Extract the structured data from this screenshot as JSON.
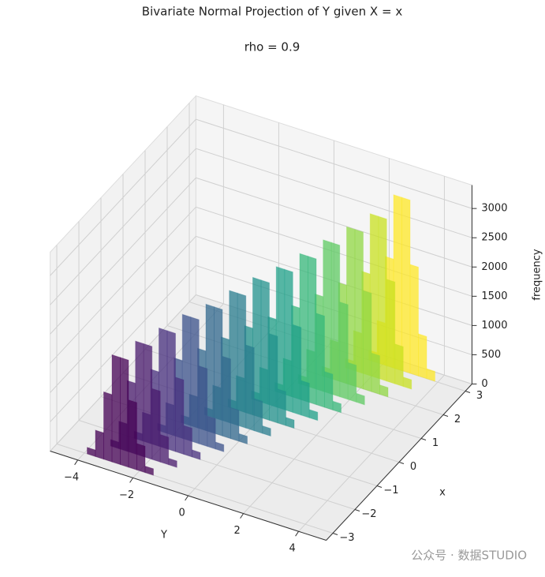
{
  "chart_data": {
    "type": "bar3d",
    "title": "Bivariate Normal Projection of Y given X = x",
    "subtitle": "rho = 0.9",
    "xlabel": "Y",
    "ylabel": "x",
    "zlabel": "frequency",
    "watermark": "公众号 · 数据STUDIO",
    "xlim": [
      -5,
      5
    ],
    "xticks": [
      {
        "value": -4,
        "label": "−4"
      },
      {
        "value": -2,
        "label": "−2"
      },
      0,
      2,
      4
    ],
    "ylim": [
      -3.3,
      3.3
    ],
    "yticks": [
      {
        "value": -3,
        "label": "−3"
      },
      {
        "value": -2,
        "label": "−2"
      },
      {
        "value": -1,
        "label": "−1"
      },
      0,
      1,
      2,
      3
    ],
    "zlim": [
      0,
      3400
    ],
    "zticks": [
      0,
      500,
      1000,
      1500,
      2000,
      2500,
      3000
    ],
    "grid": true,
    "series": [
      {
        "x": -3,
        "color": "#440154",
        "bins": [
          -3.9,
          -3.6,
          -3.3,
          -3.0,
          -2.7,
          -2.4,
          -2.1,
          -1.8,
          -1.5
        ],
        "values": [
          110,
          450,
          1150,
          1830,
          1830,
          1150,
          450,
          110
        ]
      },
      {
        "x": -2.5,
        "color": "#481a6c",
        "bins": [
          -3.45,
          -3.15,
          -2.85,
          -2.55,
          -2.25,
          -1.95,
          -1.65,
          -1.35,
          -1.05
        ],
        "values": [
          110,
          470,
          1210,
          1930,
          1930,
          1210,
          470,
          110
        ]
      },
      {
        "x": -2,
        "color": "#472f7d",
        "bins": [
          -3.0,
          -2.7,
          -2.4,
          -2.1,
          -1.8,
          -1.5,
          -1.2,
          -0.9,
          -0.6
        ],
        "values": [
          120,
          490,
          1270,
          2020,
          2020,
          1270,
          490,
          120
        ]
      },
      {
        "x": -1.5,
        "color": "#3b528b",
        "bins": [
          -2.55,
          -2.25,
          -1.95,
          -1.65,
          -1.35,
          -1.05,
          -0.75,
          -0.45,
          -0.15
        ],
        "values": [
          120,
          520,
          1330,
          2120,
          2120,
          1330,
          520,
          120
        ]
      },
      {
        "x": -1,
        "color": "#31688e",
        "bins": [
          -2.1,
          -1.8,
          -1.5,
          -1.2,
          -0.9,
          -0.6,
          -0.3,
          0,
          0.3
        ],
        "values": [
          130,
          530,
          1360,
          2160,
          2160,
          1360,
          530,
          130
        ]
      },
      {
        "x": -0.5,
        "color": "#287c8e",
        "bins": [
          -1.65,
          -1.35,
          -1.05,
          -0.75,
          -0.45,
          -0.15,
          0.15,
          0.45,
          0.75
        ],
        "values": [
          130,
          550,
          1420,
          2260,
          2260,
          1420,
          550,
          130
        ]
      },
      {
        "x": 0,
        "color": "#21918c",
        "bins": [
          -1.2,
          -0.9,
          -0.6,
          -0.3,
          0,
          0.3,
          0.6,
          0.9,
          1.2
        ],
        "values": [
          140,
          580,
          1480,
          2350,
          2350,
          1480,
          580,
          140
        ]
      },
      {
        "x": 0.5,
        "color": "#1fa088",
        "bins": [
          -0.75,
          -0.45,
          -0.15,
          0.15,
          0.45,
          0.75,
          1.05,
          1.35,
          1.65
        ],
        "values": [
          140,
          590,
          1500,
          2400,
          2400,
          1500,
          590,
          140
        ]
      },
      {
        "x": 1,
        "color": "#35b779",
        "bins": [
          -0.3,
          0,
          0.3,
          0.6,
          0.9,
          1.2,
          1.5,
          1.8,
          2.1
        ],
        "values": [
          150,
          610,
          1560,
          2490,
          2490,
          1560,
          610,
          150
        ]
      },
      {
        "x": 1.5,
        "color": "#5ec962",
        "bins": [
          0.15,
          0.45,
          0.75,
          1.05,
          1.35,
          1.65,
          1.95,
          2.25,
          2.55
        ],
        "values": [
          150,
          630,
          1620,
          2590,
          2590,
          1620,
          630,
          150
        ]
      },
      {
        "x": 2,
        "color": "#90d743",
        "bins": [
          0.6,
          0.9,
          1.2,
          1.5,
          1.8,
          2.1,
          2.4,
          2.7,
          3.0
        ],
        "values": [
          160,
          660,
          1680,
          2680,
          2680,
          1680,
          660,
          160
        ]
      },
      {
        "x": 2.5,
        "color": "#c8e020",
        "bins": [
          1.05,
          1.35,
          1.65,
          1.95,
          2.25,
          2.55,
          2.85,
          3.15,
          3.45
        ],
        "values": [
          160,
          680,
          1740,
          2770,
          2770,
          1740,
          680,
          160
        ]
      },
      {
        "x": 3,
        "color": "#fde725",
        "bins": [
          1.5,
          1.8,
          2.1,
          2.4,
          2.7,
          3.0,
          3.3,
          3.6,
          3.9
        ],
        "values": [
          170,
          720,
          1860,
          2960,
          2960,
          1860,
          720,
          170
        ]
      }
    ]
  }
}
